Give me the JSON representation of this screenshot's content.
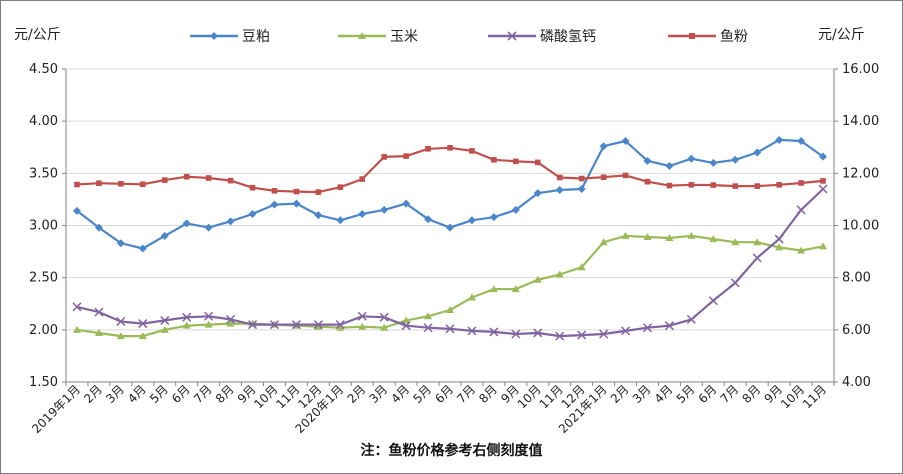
{
  "chart_data": {
    "type": "line",
    "left_axis_unit": "元/公斤",
    "right_axis_unit": "元/公斤",
    "left_ylim": [
      1.5,
      4.5
    ],
    "left_ticks": [
      "1.50",
      "2.00",
      "2.50",
      "3.00",
      "3.50",
      "4.00",
      "4.50"
    ],
    "right_ylim": [
      4.0,
      16.0
    ],
    "right_ticks": [
      "4.00",
      "6.00",
      "8.00",
      "10.00",
      "12.00",
      "14.00",
      "16.00"
    ],
    "categories": [
      "2019年1月",
      "2月",
      "3月",
      "4月",
      "5月",
      "6月",
      "7月",
      "8月",
      "9月",
      "10月",
      "11月",
      "12月",
      "2020年1月",
      "2月",
      "3月",
      "4月",
      "5月",
      "6月",
      "7月",
      "8月",
      "9月",
      "10月",
      "11月",
      "12月",
      "2021年1月",
      "2月",
      "3月",
      "4月",
      "5月",
      "6月",
      "7月",
      "8月",
      "9月",
      "10月",
      "11月"
    ],
    "grid": true,
    "legend_position": "top",
    "note": "注：鱼粉价格参考右侧刻度值",
    "series": [
      {
        "name": "豆粕",
        "axis": "left",
        "color": "#4a86c8",
        "marker": "diamond",
        "values": [
          3.14,
          2.98,
          2.83,
          2.78,
          2.9,
          3.02,
          2.98,
          3.04,
          3.11,
          3.2,
          3.21,
          3.1,
          3.05,
          3.11,
          3.15,
          3.21,
          3.06,
          2.98,
          3.05,
          3.08,
          3.15,
          3.31,
          3.34,
          3.35,
          3.76,
          3.81,
          3.62,
          3.57,
          3.64,
          3.6,
          3.63,
          3.7,
          3.82,
          3.81,
          3.66
        ]
      },
      {
        "name": "玉米",
        "axis": "left",
        "color": "#9bbb59",
        "marker": "triangle",
        "values": [
          2.0,
          1.97,
          1.94,
          1.94,
          2.0,
          2.04,
          2.05,
          2.06,
          2.06,
          2.05,
          2.04,
          2.03,
          2.02,
          2.03,
          2.02,
          2.09,
          2.13,
          2.19,
          2.31,
          2.39,
          2.39,
          2.48,
          2.53,
          2.6,
          2.84,
          2.9,
          2.89,
          2.88,
          2.9,
          2.87,
          2.84,
          2.84,
          2.79,
          2.76,
          2.8
        ]
      },
      {
        "name": "磷酸氢钙",
        "axis": "left",
        "color": "#8064a2",
        "marker": "x",
        "values": [
          2.22,
          2.17,
          2.08,
          2.06,
          2.09,
          2.12,
          2.13,
          2.1,
          2.05,
          2.05,
          2.05,
          2.05,
          2.05,
          2.13,
          2.12,
          2.04,
          2.02,
          2.01,
          1.99,
          1.98,
          1.96,
          1.97,
          1.94,
          1.95,
          1.96,
          1.99,
          2.02,
          2.04,
          2.1,
          2.28,
          2.45,
          2.69,
          2.87,
          3.15,
          3.35
        ]
      },
      {
        "name": "鱼粉",
        "axis": "right",
        "color": "#c0504d",
        "marker": "square",
        "values": [
          11.57,
          11.62,
          11.6,
          11.58,
          11.74,
          11.87,
          11.82,
          11.72,
          11.45,
          11.33,
          11.3,
          11.28,
          11.47,
          11.78,
          12.63,
          12.66,
          12.94,
          12.98,
          12.86,
          12.52,
          12.46,
          12.42,
          11.84,
          11.8,
          11.85,
          11.92,
          11.68,
          11.53,
          11.56,
          11.55,
          11.51,
          11.51,
          11.56,
          11.63,
          11.71
        ]
      }
    ]
  }
}
